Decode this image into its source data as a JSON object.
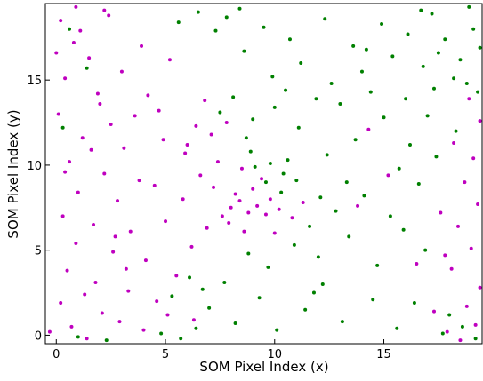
{
  "chart_data": {
    "type": "scatter",
    "xlabel": "SOM Pixel Index (x)",
    "ylabel": "SOM Pixel Index (y)",
    "xlim": [
      -0.5,
      19.5
    ],
    "ylim": [
      -0.5,
      19.5
    ],
    "xticks": [
      0,
      5,
      10,
      15
    ],
    "yticks": [
      0,
      5,
      10,
      15
    ],
    "series": [
      {
        "color": "#bf00bf",
        "x": [
          0.2,
          0.8,
          1.5,
          0.4,
          1.9,
          0.1,
          2.5,
          1.2,
          3.1,
          0.6,
          2.2,
          3.8,
          1.0,
          4.5,
          2.8,
          0.3,
          1.7,
          3.4,
          5.0,
          0.9,
          2.6,
          4.1,
          0.5,
          1.8,
          3.3,
          0.2,
          2.1,
          0.7,
          -0.3,
          1.4,
          2.9,
          4.6,
          5.5,
          6.2,
          5.8,
          6.6,
          7.1,
          6.4,
          5.9,
          7.4,
          4.9,
          3.6,
          2.0,
          4.2,
          3.0,
          1.1,
          0.0,
          2.4,
          3.9,
          5.2,
          4.7,
          6.8,
          8.0,
          8.4,
          8.8,
          9.2,
          7.6,
          8.2,
          9.6,
          7.9,
          9.0,
          10.2,
          10.8,
          11.3,
          7.2,
          6.9,
          8.6,
          9.4,
          6.0,
          7.8,
          3.2,
          1.3,
          5.1,
          4.0,
          6.3,
          2.7,
          0.4,
          1.6,
          18.2,
          19.1,
          18.7,
          19.3,
          18.4,
          19.0,
          18.1,
          19.4,
          18.8,
          19.2,
          17.9,
          18.5,
          19.4,
          18.9,
          17.8,
          17.6,
          15.2,
          16.5,
          14.3,
          13.8,
          17.3,
          0.9,
          2.2,
          10.0,
          9.8,
          8.5
        ],
        "values": [
          18.5,
          17.2,
          16.3,
          15.1,
          14.2,
          13.0,
          12.4,
          11.6,
          11.0,
          10.2,
          9.5,
          9.1,
          8.4,
          8.8,
          7.9,
          7.0,
          6.5,
          6.1,
          6.7,
          5.4,
          4.9,
          4.4,
          3.8,
          3.1,
          2.6,
          1.9,
          1.3,
          0.5,
          0.2,
          -0.2,
          0.8,
          2.0,
          3.5,
          5.2,
          8.0,
          9.4,
          11.8,
          12.3,
          10.7,
          10.2,
          11.5,
          12.9,
          13.6,
          14.1,
          15.5,
          17.9,
          16.6,
          18.8,
          17.0,
          16.2,
          13.2,
          13.8,
          7.5,
          7.9,
          7.2,
          7.6,
          7.0,
          8.3,
          7.1,
          6.6,
          8.6,
          7.4,
          6.9,
          7.8,
          8.7,
          6.3,
          6.1,
          9.2,
          11.2,
          12.5,
          3.9,
          2.4,
          1.2,
          0.3,
          0.9,
          5.8,
          9.6,
          10.9,
          11.3,
          10.4,
          9.0,
          7.7,
          6.4,
          5.1,
          3.9,
          2.8,
          1.7,
          0.6,
          0.2,
          -0.3,
          12.6,
          13.9,
          4.7,
          7.2,
          9.4,
          4.2,
          12.1,
          7.6,
          1.4,
          19.3,
          19.1,
          6.0,
          8.0,
          9.8
        ]
      },
      {
        "color": "#008000",
        "x": [
          8.4,
          9.5,
          10.7,
          12.3,
          13.6,
          14.9,
          16.1,
          17.2,
          17.8,
          18.5,
          19.1,
          18.2,
          19.3,
          17.5,
          18.9,
          16.8,
          15.4,
          14.0,
          12.6,
          11.2,
          9.9,
          8.6,
          7.3,
          6.5,
          0.6,
          1.4,
          0.3,
          1.0,
          2.3,
          4.8,
          5.7,
          6.4,
          5.3,
          6.1,
          7.0,
          8.2,
          9.3,
          10.1,
          11.4,
          12.2,
          13.1,
          14.5,
          15.6,
          16.4,
          17.7,
          18.6,
          19.2,
          18.0,
          9.7,
          10.9,
          12.0,
          13.4,
          14.7,
          15.9,
          16.9,
          11.6,
          12.8,
          14.1,
          15.3,
          16.6,
          17.4,
          18.3,
          16.2,
          15.0,
          13.7,
          12.4,
          11.1,
          10.0,
          9.0,
          8.1,
          9.8,
          10.4,
          9.1,
          10.6,
          9.6,
          10.3,
          8.9,
          11.0,
          8.7,
          7.5,
          13.0,
          14.4,
          16.0,
          17.0,
          18.8,
          19.4,
          17.3,
          15.7,
          13.3,
          12.1,
          11.8,
          7.7,
          8.8,
          6.7,
          10.5,
          11.9,
          14.2,
          16.7,
          5.6,
          7.8
        ],
        "values": [
          19.2,
          18.1,
          17.4,
          18.6,
          17.0,
          18.3,
          17.7,
          18.9,
          17.4,
          16.2,
          18.0,
          15.1,
          14.3,
          16.6,
          19.3,
          15.8,
          16.4,
          15.5,
          14.8,
          16.0,
          15.2,
          16.7,
          17.9,
          19.0,
          18.0,
          15.7,
          12.2,
          -0.1,
          -0.3,
          0.1,
          -0.2,
          0.4,
          2.3,
          3.4,
          1.6,
          0.7,
          2.2,
          0.3,
          1.5,
          3.0,
          0.8,
          2.1,
          0.4,
          1.9,
          0.1,
          0.5,
          -0.2,
          1.2,
          4.0,
          5.3,
          4.6,
          5.8,
          4.1,
          6.2,
          5.0,
          6.4,
          7.3,
          8.2,
          7.0,
          8.9,
          10.5,
          12.0,
          11.2,
          12.8,
          11.5,
          10.6,
          12.2,
          13.4,
          12.7,
          14.0,
          10.1,
          9.5,
          9.9,
          10.3,
          9.0,
          8.4,
          10.8,
          9.1,
          11.6,
          13.1,
          13.6,
          14.3,
          13.9,
          12.9,
          14.8,
          16.9,
          14.5,
          9.8,
          9.0,
          8.1,
          2.5,
          3.1,
          4.8,
          2.7,
          14.4,
          13.9,
          16.8,
          19.1,
          18.4,
          18.7
        ]
      }
    ]
  }
}
